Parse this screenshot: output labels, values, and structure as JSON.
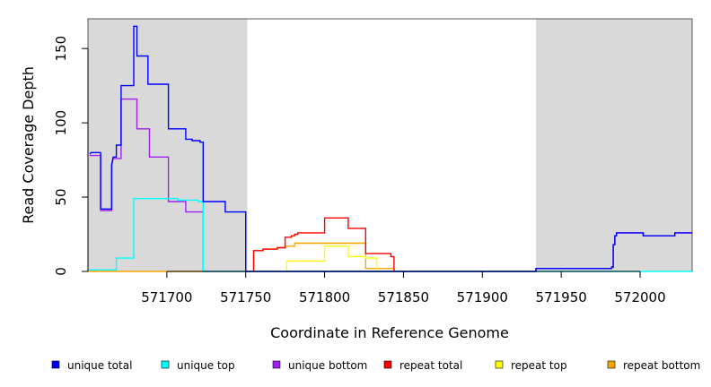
{
  "chart_data": {
    "type": "line",
    "line_style": "step",
    "xlabel": "Coordinate in Reference Genome",
    "ylabel": "Read Coverage Depth",
    "xlim": [
      571650,
      572033
    ],
    "ylim": [
      0,
      170
    ],
    "x_ticks": [
      571700,
      571750,
      571800,
      571850,
      571900,
      571950,
      572000
    ],
    "y_ticks": [
      0,
      50,
      100,
      150
    ],
    "shaded_regions": [
      {
        "x0": 571650,
        "x1": 571751,
        "color": "#d9d9d9"
      },
      {
        "x0": 571934,
        "x1": 572033,
        "color": "#d9d9d9"
      }
    ],
    "legend_position": "bottom",
    "series": [
      {
        "name": "unique total",
        "color": "#0000ff",
        "points": [
          [
            571651,
            79
          ],
          [
            571652,
            80
          ],
          [
            571658,
            80
          ],
          [
            571658,
            42
          ],
          [
            571665,
            42
          ],
          [
            571665,
            72
          ],
          [
            571666,
            77
          ],
          [
            571668,
            77
          ],
          [
            571668,
            85
          ],
          [
            571671,
            85
          ],
          [
            571671,
            125
          ],
          [
            571679,
            125
          ],
          [
            571679,
            165
          ],
          [
            571681,
            165
          ],
          [
            571681,
            145
          ],
          [
            571688,
            145
          ],
          [
            571688,
            126
          ],
          [
            571701,
            126
          ],
          [
            571701,
            96
          ],
          [
            571712,
            96
          ],
          [
            571712,
            89
          ],
          [
            571716,
            89
          ],
          [
            571716,
            88
          ],
          [
            571721,
            88
          ],
          [
            571721,
            87
          ],
          [
            571723,
            87
          ],
          [
            571723,
            47
          ],
          [
            571737,
            47
          ],
          [
            571737,
            40
          ],
          [
            571750,
            40
          ],
          [
            571750,
            0
          ],
          [
            571756,
            0
          ],
          [
            571756,
            0
          ],
          [
            571934,
            0
          ],
          [
            571934,
            2
          ],
          [
            571982,
            2
          ],
          [
            571982,
            3
          ],
          [
            571983,
            3
          ],
          [
            571983,
            18
          ],
          [
            571984,
            18
          ],
          [
            571984,
            24
          ],
          [
            571985,
            24
          ],
          [
            571985,
            26
          ],
          [
            572002,
            26
          ],
          [
            572002,
            24
          ],
          [
            572022,
            24
          ],
          [
            572022,
            26
          ],
          [
            572033,
            26
          ]
        ]
      },
      {
        "name": "unique top",
        "color": "#00ffff",
        "points": [
          [
            571650,
            1
          ],
          [
            571668,
            1
          ],
          [
            571668,
            9
          ],
          [
            571679,
            9
          ],
          [
            571679,
            49
          ],
          [
            571707,
            49
          ],
          [
            571707,
            48
          ],
          [
            571720,
            48
          ],
          [
            571720,
            47
          ],
          [
            571723,
            47
          ],
          [
            571723,
            0
          ],
          [
            571934,
            0
          ],
          [
            571934,
            0
          ],
          [
            572033,
            0
          ]
        ]
      },
      {
        "name": "unique bottom",
        "color": "#a020f0",
        "points": [
          [
            571651,
            78
          ],
          [
            571658,
            78
          ],
          [
            571658,
            41
          ],
          [
            571665,
            41
          ],
          [
            571665,
            71
          ],
          [
            571666,
            76
          ],
          [
            571671,
            76
          ],
          [
            571671,
            116
          ],
          [
            571681,
            116
          ],
          [
            571681,
            96
          ],
          [
            571689,
            96
          ],
          [
            571689,
            77
          ],
          [
            571701,
            77
          ],
          [
            571701,
            47
          ],
          [
            571712,
            47
          ],
          [
            571712,
            40
          ],
          [
            571723,
            40
          ],
          [
            571723,
            0
          ],
          [
            571934,
            0
          ],
          [
            571934,
            2
          ],
          [
            571982,
            2
          ],
          [
            571982,
            3
          ],
          [
            571983,
            3
          ],
          [
            571983,
            18
          ],
          [
            571984,
            18
          ],
          [
            571984,
            24
          ],
          [
            571985,
            24
          ],
          [
            571985,
            26
          ],
          [
            572002,
            26
          ],
          [
            572002,
            24
          ],
          [
            572022,
            24
          ],
          [
            572022,
            26
          ],
          [
            572033,
            26
          ]
        ]
      },
      {
        "name": "repeat total",
        "color": "#ff0000",
        "points": [
          [
            571755,
            0
          ],
          [
            571755,
            14
          ],
          [
            571761,
            14
          ],
          [
            571761,
            15
          ],
          [
            571770,
            15
          ],
          [
            571770,
            16
          ],
          [
            571775,
            16
          ],
          [
            571775,
            23
          ],
          [
            571779,
            23
          ],
          [
            571779,
            24
          ],
          [
            571781,
            24
          ],
          [
            571781,
            25
          ],
          [
            571783,
            25
          ],
          [
            571783,
            26
          ],
          [
            571800,
            26
          ],
          [
            571800,
            36
          ],
          [
            571815,
            36
          ],
          [
            571815,
            29
          ],
          [
            571826,
            29
          ],
          [
            571826,
            12
          ],
          [
            571842,
            12
          ],
          [
            571842,
            10
          ],
          [
            571844,
            10
          ],
          [
            571844,
            0
          ]
        ]
      },
      {
        "name": "repeat top",
        "color": "#ffff00",
        "points": [
          [
            571776,
            0
          ],
          [
            571776,
            7
          ],
          [
            571800,
            7
          ],
          [
            571800,
            17
          ],
          [
            571815,
            17
          ],
          [
            571815,
            10
          ],
          [
            571826,
            10
          ],
          [
            571826,
            9
          ],
          [
            571833,
            9
          ],
          [
            571833,
            0
          ]
        ]
      },
      {
        "name": "repeat bottom",
        "color": "#ffa500",
        "points": [
          [
            571650,
            0
          ],
          [
            571755,
            0
          ],
          [
            571755,
            14
          ],
          [
            571761,
            14
          ],
          [
            571761,
            15
          ],
          [
            571770,
            15
          ],
          [
            571770,
            16
          ],
          [
            571775,
            16
          ],
          [
            571775,
            17
          ],
          [
            571781,
            17
          ],
          [
            571781,
            19
          ],
          [
            571826,
            19
          ],
          [
            571826,
            2
          ],
          [
            571844,
            2
          ],
          [
            571844,
            0
          ]
        ]
      }
    ]
  }
}
